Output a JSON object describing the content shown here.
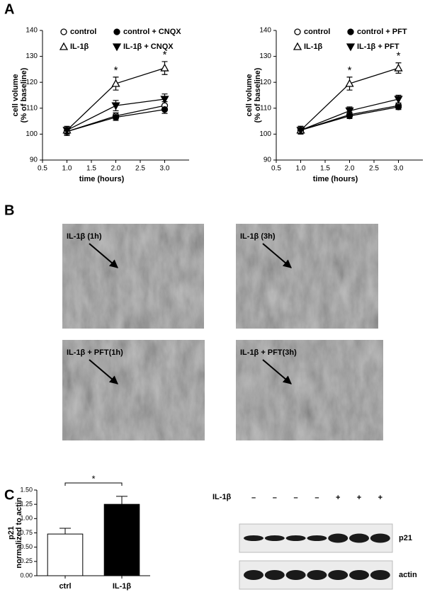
{
  "panel_labels": [
    "A",
    "B",
    "C"
  ],
  "chart_data": [
    {
      "type": "line",
      "xlabel": "time (hours)",
      "ylabel": [
        "cell volume",
        "(% of baseline)"
      ],
      "x": [
        1.0,
        2.0,
        3.0
      ],
      "xlim": [
        0.5,
        3.5
      ],
      "xticks": [
        0.5,
        {
          "value": 1,
          "label": "1.0"
        },
        1.5,
        {
          "value": 2,
          "label": "2.0"
        },
        2.5,
        {
          "value": 3,
          "label": "3.0"
        }
      ],
      "ylim": [
        90,
        140
      ],
      "yticks": [
        90,
        100,
        110,
        120,
        130,
        140
      ],
      "series": [
        {
          "name": "control",
          "color": "#000000",
          "marker": "circle-open",
          "values": [
            101,
            107,
            111
          ],
          "errors": [
            1.5,
            1.2,
            1.5
          ]
        },
        {
          "name": "control + CNQX",
          "color": "#000000",
          "marker": "circle-filled",
          "values": [
            101,
            106.5,
            109.5
          ],
          "errors": [
            1.5,
            1.2,
            1.5
          ]
        },
        {
          "name": "IL-1β",
          "color": "#000000",
          "marker": "triangle-open",
          "values": [
            101.5,
            119.5,
            125.5
          ],
          "errors": [
            1.5,
            2.5,
            2.5
          ]
        },
        {
          "name": "IL-1β + CNQX",
          "color": "#000000",
          "marker": "triangle-down-filled",
          "values": [
            101.5,
            111,
            113.5
          ],
          "errors": [
            1.5,
            2,
            2
          ]
        }
      ],
      "annotations": [
        "*",
        "*"
      ]
    },
    {
      "type": "line",
      "xlabel": "time (hours)",
      "ylabel": [
        "cell volume",
        "(% of baseline)"
      ],
      "x": [
        1.0,
        2.0,
        3.0
      ],
      "xlim": [
        0.5,
        3.5
      ],
      "xticks": [
        0.5,
        {
          "value": 1,
          "label": "1.0"
        },
        1.5,
        {
          "value": 2,
          "label": "2.0"
        },
        2.5,
        {
          "value": 3,
          "label": "3.0"
        }
      ],
      "ylim": [
        90,
        140
      ],
      "yticks": [
        90,
        100,
        110,
        120,
        130,
        140
      ],
      "series": [
        {
          "name": "control",
          "color": "#000000",
          "marker": "circle-open",
          "values": [
            101.5,
            107.5,
            111
          ],
          "errors": [
            1.5,
            1,
            1
          ]
        },
        {
          "name": "control + PFT",
          "color": "#000000",
          "marker": "circle-filled",
          "values": [
            101.5,
            107,
            110.5
          ],
          "errors": [
            1.5,
            1,
            1
          ]
        },
        {
          "name": "IL-1β",
          "color": "#000000",
          "marker": "triangle-open",
          "values": [
            101.5,
            119.5,
            125.5
          ],
          "errors": [
            1.5,
            2.5,
            2
          ]
        },
        {
          "name": "IL-1β + PFT",
          "color": "#000000",
          "marker": "triangle-down-filled",
          "values": [
            101.5,
            109,
            113.5
          ],
          "errors": [
            1.5,
            1.5,
            1.5
          ]
        }
      ],
      "annotations": [
        "*",
        "*"
      ]
    },
    {
      "type": "bar",
      "ylabel": [
        "p21",
        "normalized to actin"
      ],
      "categories": [
        "ctrl",
        "IL-1β"
      ],
      "values": [
        0.73,
        1.25
      ],
      "errors": [
        0.1,
        0.14
      ],
      "colors": [
        "#ffffff",
        "#000000"
      ],
      "ylim": [
        0,
        1.5
      ],
      "yticks": [
        {
          "value": 0,
          "label": "0.00"
        },
        {
          "value": 0.25,
          "label": "0.25"
        },
        {
          "value": 0.5,
          "label": "0.50"
        },
        {
          "value": 0.75,
          "label": "0.75"
        },
        {
          "value": 1,
          "label": "1.00"
        },
        {
          "value": 1.25,
          "label": "1.25"
        },
        {
          "value": 1.5,
          "label": "1.50"
        }
      ],
      "significance": "*"
    }
  ],
  "micrographs": [
    "IL-1β (1h)",
    "IL-1β (3h)",
    "IL-1β + PFT(1h)",
    "IL-1β + PFT(3h)"
  ],
  "blot": {
    "treatment_label": "IL-1β",
    "treatments": [
      "–",
      "–",
      "–",
      "–",
      "+",
      "+",
      "+"
    ],
    "bands": [
      "p21",
      "actin"
    ]
  }
}
